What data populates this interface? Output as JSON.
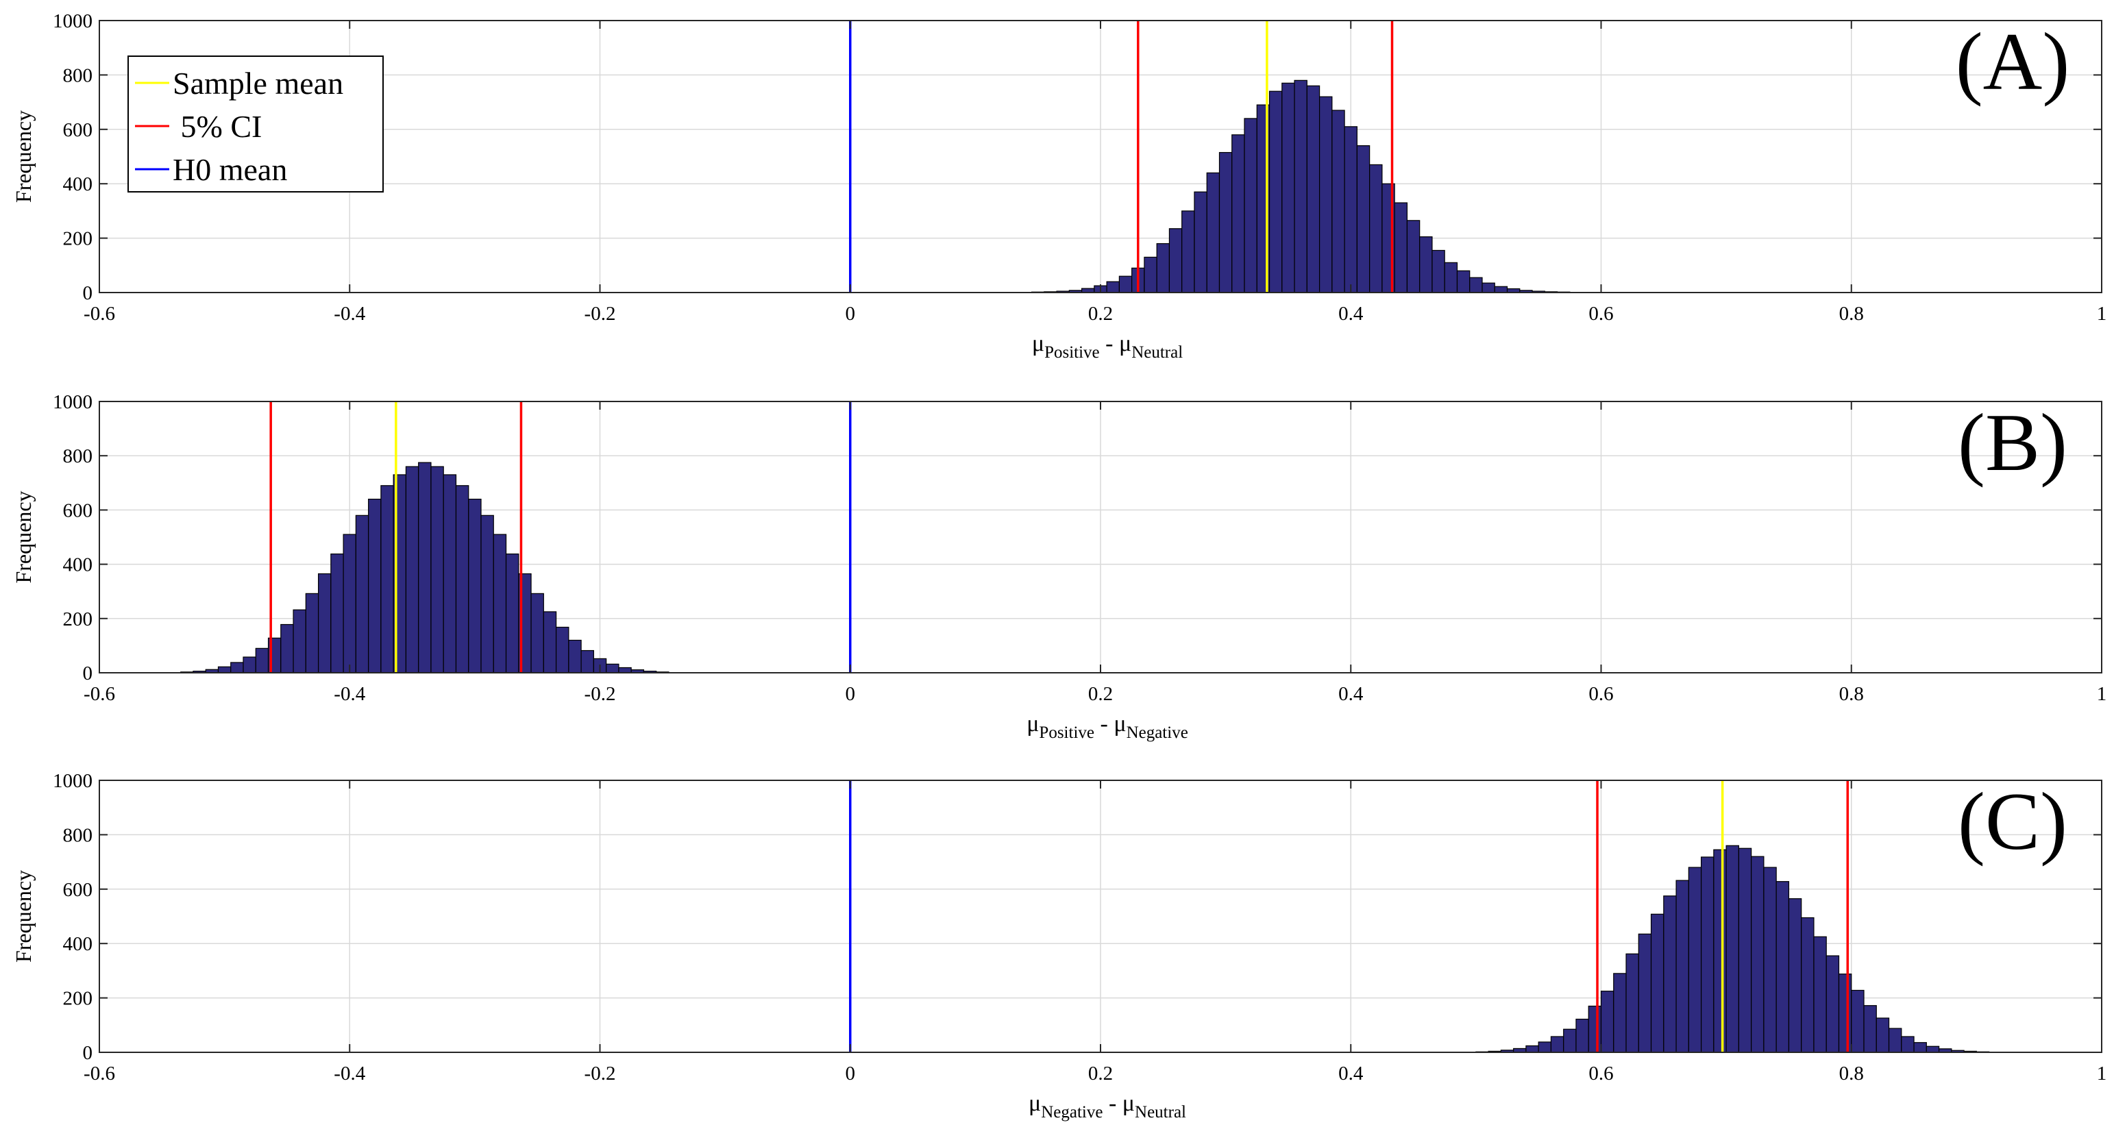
{
  "colors": {
    "bar_fill": "#2E2A7E",
    "bar_edge": "#000000",
    "sample_mean": "#FFFF00",
    "ci": "#FF0000",
    "h0_mean": "#0000FF",
    "grid": "#D9D9D9"
  },
  "legend": {
    "sample_mean": "Sample mean",
    "ci": " 5% CI",
    "h0_mean": "H0 mean"
  },
  "chart_data": [
    {
      "type": "bar",
      "panel_label": "(A)",
      "ylabel": "Frequency",
      "xlabel": {
        "mu1": "μ",
        "sub1": "Positive",
        "minus": " - ",
        "mu2": "μ",
        "sub2": "Neutral"
      },
      "xlim": [
        -0.6,
        1
      ],
      "ylim": [
        0,
        1000
      ],
      "xticks": [
        "-0.6",
        "-0.4",
        "-0.2",
        "0",
        "0.2",
        "0.4",
        "0.6",
        "0.8",
        "1"
      ],
      "yticks": [
        "0",
        "200",
        "400",
        "600",
        "800",
        "1000"
      ],
      "grid": true,
      "legend_position": "top-left",
      "bin_start": 0.135,
      "bin_width": 0.01,
      "counts": [
        1,
        2,
        3,
        5,
        8,
        15,
        25,
        40,
        60,
        90,
        130,
        180,
        235,
        300,
        370,
        440,
        515,
        580,
        640,
        690,
        740,
        770,
        780,
        760,
        720,
        670,
        610,
        540,
        470,
        400,
        330,
        265,
        205,
        155,
        110,
        80,
        55,
        35,
        22,
        14,
        8,
        5,
        3,
        2,
        1
      ],
      "sample_mean": 0.333,
      "ci": [
        0.23,
        0.433
      ],
      "h0_mean": 0
    },
    {
      "type": "bar",
      "panel_label": "(B)",
      "ylabel": "Frequency",
      "xlabel": {
        "mu1": "μ",
        "sub1": "Positive",
        "minus": " - ",
        "mu2": "μ",
        "sub2": "Negative"
      },
      "xlim": [
        -0.6,
        1
      ],
      "ylim": [
        0,
        1000
      ],
      "xticks": [
        "-0.6",
        "-0.4",
        "-0.2",
        "0",
        "0.2",
        "0.4",
        "0.6",
        "0.8",
        "1"
      ],
      "yticks": [
        "0",
        "200",
        "400",
        "600",
        "800",
        "1000"
      ],
      "grid": true,
      "bin_start": -0.545,
      "bin_width": 0.01,
      "counts": [
        1,
        3,
        6,
        12,
        22,
        38,
        58,
        90,
        128,
        178,
        232,
        292,
        365,
        438,
        510,
        580,
        640,
        690,
        730,
        760,
        775,
        760,
        730,
        690,
        640,
        580,
        510,
        438,
        365,
        292,
        225,
        168,
        120,
        82,
        52,
        32,
        19,
        11,
        6,
        3,
        1
      ],
      "sample_mean": -0.363,
      "ci": [
        -0.463,
        -0.263
      ],
      "h0_mean": 0
    },
    {
      "type": "bar",
      "panel_label": "(C)",
      "ylabel": "Frequency",
      "xlabel": {
        "mu1": "μ",
        "sub1": "Negative",
        "minus": " - ",
        "mu2": "μ",
        "sub2": "Neutral"
      },
      "xlim": [
        -0.6,
        1
      ],
      "ylim": [
        0,
        1000
      ],
      "xticks": [
        "-0.6",
        "-0.4",
        "-0.2",
        "0",
        "0.2",
        "0.4",
        "0.6",
        "0.8",
        "1"
      ],
      "yticks": [
        "0",
        "200",
        "400",
        "600",
        "800",
        "1000"
      ],
      "grid": true,
      "bin_start": 0.5,
      "bin_width": 0.01,
      "counts": [
        2,
        4,
        8,
        14,
        24,
        38,
        58,
        85,
        122,
        170,
        225,
        290,
        362,
        435,
        508,
        575,
        632,
        680,
        718,
        745,
        760,
        750,
        720,
        680,
        628,
        565,
        495,
        425,
        355,
        288,
        228,
        172,
        126,
        88,
        58,
        36,
        22,
        13,
        7,
        4,
        2
      ],
      "sample_mean": 0.697,
      "ci": [
        0.597,
        0.797
      ],
      "h0_mean": 0
    }
  ]
}
